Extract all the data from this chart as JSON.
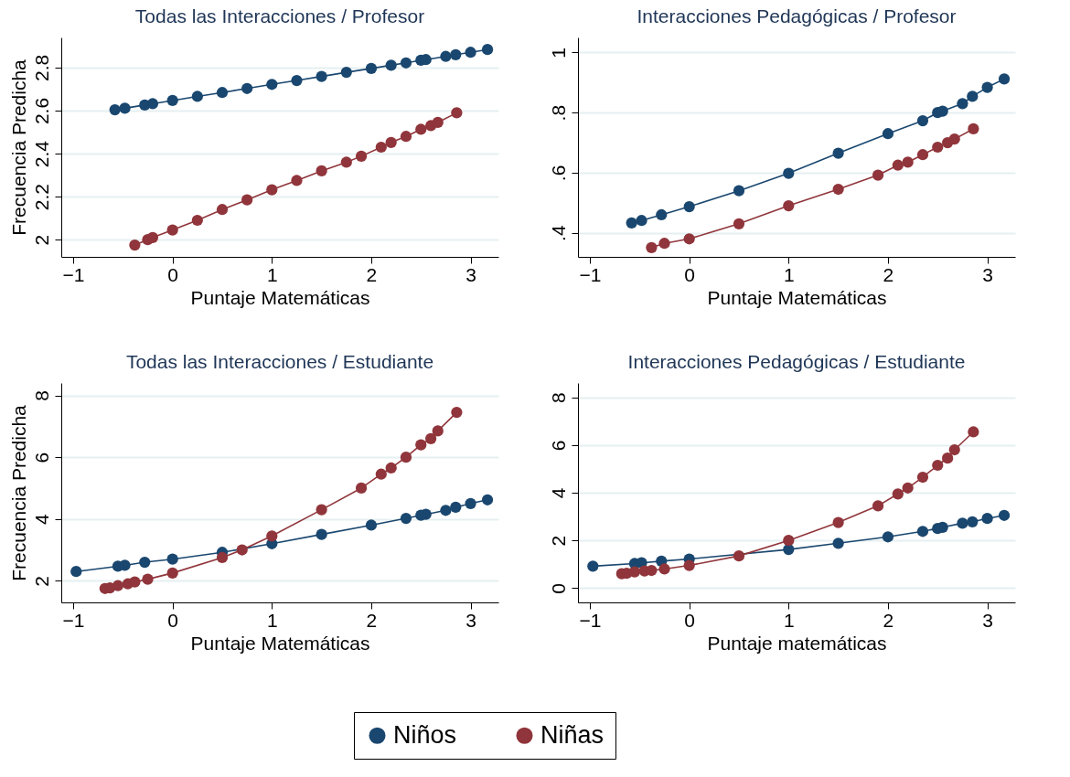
{
  "chart_data": [
    {
      "type": "line",
      "title": "Todas las Interacciones / Profesor",
      "xlabel": "Puntaje Matemáticas",
      "ylabel": "Frecuencia Predicha",
      "xlim": [
        -1.12,
        3.28
      ],
      "xticks": [
        -1,
        0,
        1,
        2,
        3
      ],
      "ylim": [
        1.92,
        2.94
      ],
      "yticks": [
        2,
        2.2,
        2.4,
        2.6,
        2.8
      ],
      "grid": "y",
      "marker": "circle",
      "legend": "bottom",
      "series": [
        {
          "name": "Niños",
          "color": "#1a476f",
          "x": [
            -0.58,
            -0.48,
            -0.28,
            -0.2,
            0,
            0.25,
            0.5,
            0.75,
            1,
            1.25,
            1.5,
            1.75,
            2,
            2.2,
            2.35,
            2.5,
            2.55,
            2.75,
            2.85,
            3.0,
            3.17
          ],
          "values": [
            2.604,
            2.611,
            2.626,
            2.632,
            2.647,
            2.666,
            2.684,
            2.703,
            2.722,
            2.74,
            2.759,
            2.778,
            2.796,
            2.811,
            2.822,
            2.834,
            2.837,
            2.852,
            2.86,
            2.871,
            2.884
          ]
        },
        {
          "name": "Niñas",
          "color": "#90353b",
          "x": [
            -0.38,
            -0.25,
            -0.2,
            0,
            0.25,
            0.5,
            0.75,
            1,
            1.25,
            1.5,
            1.75,
            1.9,
            2.1,
            2.2,
            2.35,
            2.5,
            2.6,
            2.67,
            2.86
          ],
          "values": [
            1.975,
            2.0,
            2.01,
            2.045,
            2.09,
            2.14,
            2.185,
            2.232,
            2.275,
            2.32,
            2.36,
            2.388,
            2.43,
            2.452,
            2.48,
            2.513,
            2.53,
            2.545,
            2.59
          ]
        }
      ]
    },
    {
      "type": "line",
      "title": "Interacciones Pedagógicas / Profesor",
      "xlabel": "Puntaje Matemáticas",
      "xlim": [
        -1.12,
        3.28
      ],
      "xticks": [
        -1,
        0,
        1,
        2,
        3
      ],
      "ylim": [
        0.32,
        1.05
      ],
      "yticks": [
        {
          "value": 0.4,
          "label": ".4"
        },
        {
          "value": 0.6,
          "label": ".6"
        },
        {
          "value": 0.8,
          "label": ".8"
        },
        1
      ],
      "grid": "y",
      "marker": "circle",
      "series": [
        {
          "name": "Niños",
          "color": "#1a476f",
          "x": [
            -0.58,
            -0.48,
            -0.28,
            0,
            0.5,
            1,
            1.5,
            2,
            2.35,
            2.5,
            2.55,
            2.75,
            2.85,
            3.0,
            3.17
          ],
          "values": [
            0.433,
            0.441,
            0.46,
            0.487,
            0.54,
            0.598,
            0.665,
            0.73,
            0.773,
            0.8,
            0.805,
            0.83,
            0.854,
            0.884,
            0.912
          ]
        },
        {
          "name": "Niñas",
          "color": "#90353b",
          "x": [
            -0.38,
            -0.25,
            0,
            0.5,
            1,
            1.5,
            1.9,
            2.1,
            2.2,
            2.35,
            2.5,
            2.6,
            2.67,
            2.86
          ],
          "values": [
            0.351,
            0.365,
            0.38,
            0.43,
            0.49,
            0.545,
            0.592,
            0.625,
            0.635,
            0.66,
            0.685,
            0.7,
            0.712,
            0.746
          ]
        }
      ]
    },
    {
      "type": "line",
      "title": "Todas las Interacciones / Estudiante",
      "xlabel": "Puntaje Matemáticas",
      "ylabel": "Frecuencia Predicha",
      "xlim": [
        -1.12,
        3.28
      ],
      "xticks": [
        -1,
        0,
        1,
        2,
        3
      ],
      "ylim": [
        1.3,
        8.4
      ],
      "yticks": [
        2,
        4,
        6,
        8
      ],
      "grid": "y",
      "marker": "circle",
      "series": [
        {
          "name": "Niños",
          "color": "#1a476f",
          "x": [
            -0.97,
            -0.55,
            -0.48,
            -0.28,
            0,
            0.5,
            1,
            1.5,
            2,
            2.35,
            2.5,
            2.55,
            2.75,
            2.85,
            3.0,
            3.17
          ],
          "values": [
            2.3,
            2.47,
            2.5,
            2.6,
            2.7,
            2.92,
            3.2,
            3.5,
            3.8,
            4.02,
            4.12,
            4.15,
            4.28,
            4.38,
            4.5,
            4.62
          ]
        },
        {
          "name": "Niñas",
          "color": "#90353b",
          "x": [
            -0.68,
            -0.63,
            -0.55,
            -0.45,
            -0.38,
            -0.25,
            0,
            0.5,
            0.7,
            1,
            1.5,
            1.9,
            2.1,
            2.2,
            2.35,
            2.5,
            2.6,
            2.67,
            2.86
          ],
          "values": [
            1.75,
            1.77,
            1.84,
            1.9,
            1.96,
            2.05,
            2.25,
            2.75,
            3.0,
            3.45,
            4.3,
            5.0,
            5.45,
            5.65,
            6.0,
            6.4,
            6.6,
            6.85,
            7.45
          ]
        }
      ]
    },
    {
      "type": "line",
      "title": "Interacciones Pedagógicas / Estudiante",
      "xlabel": "Puntaje matemáticas",
      "xlim": [
        -1.12,
        3.28
      ],
      "xticks": [
        -1,
        0,
        1,
        2,
        3
      ],
      "ylim": [
        -0.6,
        8.6
      ],
      "yticks": [
        0,
        2,
        4,
        6,
        8
      ],
      "grid": "y",
      "marker": "circle",
      "series": [
        {
          "name": "Niños",
          "color": "#1a476f",
          "x": [
            -0.97,
            -0.55,
            -0.48,
            -0.28,
            0,
            1,
            1.5,
            2,
            2.35,
            2.5,
            2.55,
            2.75,
            2.85,
            3.0,
            3.17
          ],
          "values": [
            0.92,
            1.03,
            1.06,
            1.13,
            1.22,
            1.62,
            1.88,
            2.15,
            2.38,
            2.5,
            2.55,
            2.72,
            2.78,
            2.92,
            3.05
          ]
        },
        {
          "name": "Niñas",
          "color": "#90353b",
          "x": [
            -0.68,
            -0.63,
            -0.55,
            -0.45,
            -0.38,
            -0.25,
            0,
            0.5,
            1,
            1.5,
            1.9,
            2.1,
            2.2,
            2.35,
            2.5,
            2.6,
            2.67,
            2.86
          ],
          "values": [
            0.6,
            0.62,
            0.68,
            0.72,
            0.74,
            0.8,
            0.95,
            1.35,
            2.0,
            2.75,
            3.45,
            3.95,
            4.2,
            4.65,
            5.15,
            5.45,
            5.8,
            6.55
          ]
        }
      ]
    }
  ]
}
